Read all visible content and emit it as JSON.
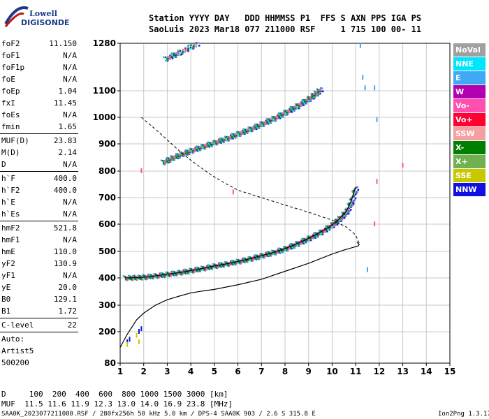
{
  "logo": {
    "line1": "Lowell",
    "line2": "DIGISONDE"
  },
  "header": {
    "line1": "Station YYYY DAY   DDD HHMMSS P1  FFS S AXN PPS IGA PS",
    "line2": "SaoLuis 2023 Mar18 077 211000 RSF     1 715 100 00- 11"
  },
  "params_group1": [
    {
      "label": "foF2",
      "value": "11.150"
    },
    {
      "label": "foF1",
      "value": "N/A"
    },
    {
      "label": "foF1p",
      "value": "N/A"
    },
    {
      "label": "foE",
      "value": "N/A"
    },
    {
      "label": "foEp",
      "value": "1.04"
    },
    {
      "label": "fxI",
      "value": "11.45"
    },
    {
      "label": "foEs",
      "value": "N/A"
    },
    {
      "label": "fmin",
      "value": "1.65"
    }
  ],
  "params_group2": [
    {
      "label": "MUF(D)",
      "value": "23.83"
    },
    {
      "label": "M(D)",
      "value": "2.14"
    },
    {
      "label": "D",
      "value": "N/A"
    }
  ],
  "params_group3": [
    {
      "label": "h`F",
      "value": "400.0"
    },
    {
      "label": "h`F2",
      "value": "400.0"
    },
    {
      "label": "h`E",
      "value": "N/A"
    },
    {
      "label": "h`Es",
      "value": "N/A"
    }
  ],
  "params_group4": [
    {
      "label": "hmF2",
      "value": "521.8"
    },
    {
      "label": "hmF1",
      "value": "N/A"
    },
    {
      "label": "hmE",
      "value": "110.0"
    },
    {
      "label": "yF2",
      "value": "130.9"
    },
    {
      "label": "yF1",
      "value": "N/A"
    },
    {
      "label": "yE",
      "value": "20.0"
    },
    {
      "label": "B0",
      "value": "129.1"
    },
    {
      "label": "B1",
      "value": "1.72"
    }
  ],
  "params_group5": [
    {
      "label": "C-level",
      "value": "22"
    }
  ],
  "auto_lines": [
    "Auto:",
    "Artist5",
    "500200"
  ],
  "legend": [
    {
      "label": "NoVal",
      "color": "#a0a0a0"
    },
    {
      "label": "NNE",
      "color": "#00e5ff"
    },
    {
      "label": "E",
      "color": "#3fa9f5"
    },
    {
      "label": "W",
      "color": "#b000b0"
    },
    {
      "label": "Vo-",
      "color": "#ff4fb0"
    },
    {
      "label": "Vo+",
      "color": "#ff0030"
    },
    {
      "label": "SSW",
      "color": "#f5a0a0"
    },
    {
      "label": "X-",
      "color": "#008000"
    },
    {
      "label": "X+",
      "color": "#70b050"
    },
    {
      "label": "SSE",
      "color": "#c8c800"
    },
    {
      "label": "NNW",
      "color": "#1010e0"
    }
  ],
  "bottom": {
    "d_row": "D     100  200  400  600  800 1000 1500 3000 [km]",
    "muf_row": "MUF  11.5 11.6 11.9 12.3 13.0 14.0 16.9 23.8 [MHz]"
  },
  "footer": {
    "left": "SAA0K_2023077211000.RSF / 280fx256h 50 kHz 5.0 km / DPS-4 SAA0K 903 / 2.6 S 315.8 E",
    "right": "Ion2Png 1.3.17"
  },
  "chart_data": {
    "type": "scatter",
    "x_ticks": [
      1,
      2,
      3,
      4,
      5,
      6,
      7,
      8,
      9,
      10,
      11,
      12,
      13,
      14,
      15
    ],
    "y_ticks": [
      80,
      200,
      300,
      400,
      500,
      600,
      700,
      800,
      900,
      1000,
      1100,
      1280
    ],
    "xlim": [
      1,
      15
    ],
    "grid": true,
    "series": [
      {
        "kind": "trace",
        "color": "#000000",
        "x": [
          1.2,
          1.6,
          2.0,
          2.5,
          3.0,
          3.5,
          4.0,
          4.5,
          5.0,
          5.5,
          6.0,
          6.5,
          7.0,
          7.5,
          8.0,
          8.5,
          9.0,
          9.5,
          10.0,
          10.3,
          10.6,
          10.8,
          11.0
        ],
        "y": [
          400,
          401,
          403,
          408,
          414,
          420,
          428,
          436,
          445,
          453,
          462,
          472,
          484,
          496,
          510,
          528,
          548,
          570,
          597,
          620,
          648,
          685,
          740
        ]
      },
      {
        "kind": "trace",
        "color": "#3fa9f5",
        "x": [
          2.8,
          3.2,
          3.6,
          4.0,
          4.5,
          5.0,
          5.5,
          6.0,
          6.5,
          7.0,
          7.5,
          8.0,
          8.5,
          9.0,
          9.3,
          9.5
        ],
        "y": [
          832,
          848,
          862,
          875,
          890,
          905,
          920,
          938,
          955,
          975,
          995,
          1018,
          1042,
          1070,
          1090,
          1105
        ]
      },
      {
        "kind": "trace",
        "color": "#b000b0",
        "x": [
          2.9,
          3.5,
          4.3
        ],
        "y": [
          1220,
          1245,
          1280
        ]
      },
      {
        "kind": "profile",
        "color": "#000000",
        "x": [
          1.0,
          1.3,
          1.7,
          2.0,
          2.5,
          3.0,
          3.5,
          4.0,
          4.5,
          5.0,
          6.0,
          7.0,
          8.0,
          9.0,
          10.0,
          10.5,
          10.9,
          11.1,
          11.15,
          11.05
        ],
        "y": [
          140,
          190,
          245,
          270,
          300,
          320,
          333,
          345,
          352,
          358,
          375,
          395,
          425,
          455,
          490,
          505,
          515,
          520,
          525,
          535
        ]
      },
      {
        "kind": "dashed",
        "color": "#000000",
        "x": [
          1.9,
          2.5,
          3.0,
          3.5,
          4.0,
          4.5,
          5.0,
          5.5,
          6.0,
          7.0,
          8.0,
          9.0,
          10.0,
          10.6,
          11.0,
          11.15
        ],
        "y": [
          1000,
          955,
          915,
          875,
          840,
          808,
          778,
          752,
          728,
          700,
          672,
          645,
          615,
          590,
          560,
          530
        ]
      },
      {
        "kind": "dots",
        "color": "#3fa9f5",
        "x": [
          11.2,
          11.3,
          11.4,
          11.8,
          11.9,
          11.5
        ],
        "y": [
          1270,
          1150,
          1110,
          1110,
          990,
          430
        ]
      },
      {
        "kind": "dots",
        "color": "#ff4fb0",
        "x": [
          1.9,
          5.8,
          11.9,
          13.0,
          11.8
        ],
        "y": [
          800,
          720,
          760,
          820,
          600
        ]
      },
      {
        "kind": "dots",
        "color": "#1010e0",
        "x": [
          1.3,
          1.4,
          1.8,
          1.9
        ],
        "y": [
          160,
          170,
          200,
          210
        ]
      },
      {
        "kind": "dots",
        "color": "#c8c800",
        "x": [
          1.3,
          1.7,
          1.8
        ],
        "y": [
          150,
          185,
          160
        ]
      }
    ]
  }
}
